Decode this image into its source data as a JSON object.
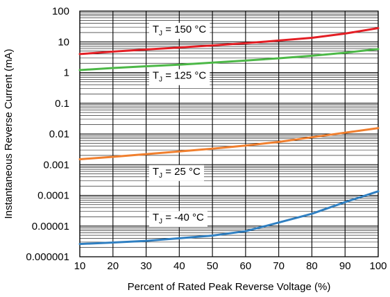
{
  "chart_data": {
    "type": "line",
    "xlabel": "Percent of Rated Peak Reverse Voltage (%)",
    "ylabel": "Instantaneous Reverse Current (mA)",
    "xlim": [
      10,
      100
    ],
    "ylim": [
      1e-06,
      100
    ],
    "y_scale": "log",
    "grid": true,
    "x_ticks": [
      10,
      20,
      30,
      40,
      50,
      60,
      70,
      80,
      90,
      100
    ],
    "x_tick_labels": [
      "10",
      "20",
      "30",
      "40",
      "50",
      "60",
      "70",
      "80",
      "90",
      "100"
    ],
    "y_ticks": [
      1e-06,
      1e-05,
      0.0001,
      0.001,
      0.01,
      0.1,
      1,
      10,
      100
    ],
    "y_tick_labels": [
      "0.000001",
      "0.00001",
      "0.0001",
      "0.001",
      "0.01",
      "0.1",
      "1",
      "10",
      "100"
    ],
    "x": [
      10,
      20,
      30,
      40,
      50,
      60,
      70,
      80,
      90,
      100
    ],
    "series": [
      {
        "label_main": "T",
        "label_sub": "J",
        "label_rest": " = 150 °C",
        "color": "#e31e24",
        "values": [
          4.0,
          4.8,
          5.6,
          6.5,
          7.6,
          9.0,
          11.0,
          13.5,
          18.5,
          28
        ]
      },
      {
        "label_main": "T",
        "label_sub": "J",
        "label_rest": " = 125 °C",
        "color": "#4cb847",
        "values": [
          1.2,
          1.4,
          1.6,
          1.8,
          2.1,
          2.45,
          2.9,
          3.5,
          4.4,
          5.8
        ]
      },
      {
        "label_main": "T",
        "label_sub": "J",
        "label_rest": " = 25 °C",
        "color": "#f07f2e",
        "values": [
          0.0015,
          0.0018,
          0.0022,
          0.0027,
          0.0033,
          0.0042,
          0.0055,
          0.0078,
          0.011,
          0.0155
        ]
      },
      {
        "label_main": "T",
        "label_sub": "J",
        "label_rest": " = -40 °C",
        "color": "#2f7fc1",
        "values": [
          2.6e-06,
          2.9e-06,
          3.3e-06,
          4e-06,
          4.9e-06,
          6.8e-06,
          1.3e-05,
          2.5e-05,
          6e-05,
          0.000135
        ]
      }
    ],
    "annotations": [
      {
        "main": "T",
        "sub": "J",
        "rest": " = 150 °C",
        "x": 33,
        "y": 20
      },
      {
        "main": "T",
        "sub": "J",
        "rest": " = 125 °C",
        "x": 33,
        "y": 0.62
      },
      {
        "main": "T",
        "sub": "J",
        "rest": " = 25 °C",
        "x": 33,
        "y": 0.00047
      },
      {
        "main": "T",
        "sub": "J",
        "rest": " = -40 °C",
        "x": 33,
        "y": 1.48e-05
      }
    ]
  }
}
